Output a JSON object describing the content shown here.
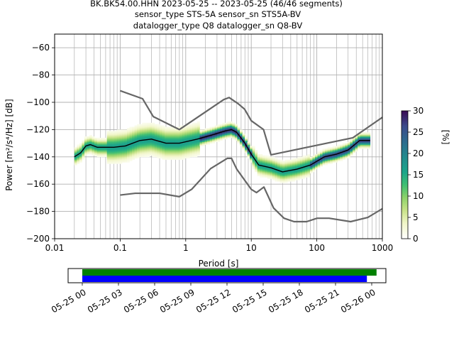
{
  "chart_data": [
    {
      "type": "heatmap",
      "subtype": "ppsd",
      "title_lines": [
        "BK.BK54.00.HHN   2023-05-25 -- 2023-05-25  (46/46 segments)",
        "sensor_type STS-5A sensor_sn STS5A-BV",
        "datalogger_type Q8 datalogger_sn Q8-BV"
      ],
      "xlabel": "Period [s]",
      "ylabel": "Power [m²/s⁴/Hz] [dB]",
      "xscale": "log",
      "xlim": [
        0.01,
        1000
      ],
      "ylim": [
        -200,
        -50
      ],
      "x_ticks": [
        0.01,
        0.1,
        1,
        10,
        100,
        1000
      ],
      "x_tick_labels": [
        "0.01",
        "0.1",
        "1",
        "10",
        "100",
        "1000"
      ],
      "y_ticks": [
        -200,
        -180,
        -160,
        -140,
        -120,
        -100,
        -80,
        -60
      ],
      "y_tick_labels": [
        "−200",
        "−180",
        "−160",
        "−140",
        "−120",
        "−100",
        "−80",
        "−60"
      ],
      "grid": true,
      "colorbar": {
        "label": "[%]",
        "range": [
          0,
          30
        ],
        "ticks": [
          0,
          5,
          10,
          15,
          20,
          25,
          30
        ],
        "tick_labels": [
          "0",
          "5",
          "10",
          "15",
          "20",
          "25",
          "30"
        ],
        "colormap": "viridis_white"
      },
      "series": [
        {
          "role": "mean",
          "color": "#000000",
          "x": [
            0.02,
            0.025,
            0.03,
            0.035,
            0.045,
            0.06,
            0.08,
            0.12,
            0.2,
            0.3,
            0.5,
            0.8,
            1.5,
            2.5,
            4,
            5,
            6,
            8,
            10,
            13,
            20,
            30,
            50,
            80,
            130,
            200,
            300,
            450,
            650
          ],
          "y": [
            -140,
            -137,
            -132,
            -131,
            -133,
            -133,
            -133,
            -132,
            -128,
            -127,
            -130,
            -130,
            -127,
            -124,
            -121,
            -120,
            -122,
            -130,
            -138,
            -146,
            -148,
            -151,
            -149,
            -146,
            -140,
            -138,
            -135,
            -128,
            -128
          ]
        },
        {
          "role": "noise_model_high",
          "color": "#666666",
          "x": [
            0.1,
            0.22,
            0.32,
            0.8,
            3.8,
            4.6,
            6.3,
            7.9,
            10,
            15.4,
            20,
            354.8,
            1000
          ],
          "y": [
            -91.5,
            -97.4,
            -110.5,
            -120,
            -98,
            -96.5,
            -101,
            -105,
            -113.5,
            -120,
            -138.5,
            -126,
            -111
          ]
        },
        {
          "role": "noise_model_low",
          "color": "#666666",
          "x": [
            0.1,
            0.17,
            0.4,
            0.8,
            1.24,
            2.4,
            4.3,
            5,
            6,
            10,
            12,
            15.6,
            21.9,
            31.6,
            45,
            70,
            101,
            154,
            328,
            600,
            1000
          ],
          "y": [
            -168,
            -166.7,
            -166.7,
            -169.2,
            -163.7,
            -148.6,
            -141.1,
            -141.1,
            -149,
            -163.8,
            -166.2,
            -162.1,
            -177.5,
            -185,
            -187.5,
            -187.5,
            -185,
            -185,
            -187.5,
            -184.4,
            -178
          ]
        }
      ]
    },
    {
      "type": "timeline",
      "x_tick_labels": [
        "05-25 00",
        "05-25 03",
        "05-25 06",
        "05-25 09",
        "05-25 12",
        "05-25 15",
        "05-25 18",
        "05-25 21",
        "05-26 00"
      ],
      "bars": [
        {
          "color": "#008000",
          "start_hour": 0,
          "end_hour": 24.4
        },
        {
          "color": "#0000ff",
          "start_hour": 0,
          "end_hour": 23.6
        }
      ]
    }
  ]
}
